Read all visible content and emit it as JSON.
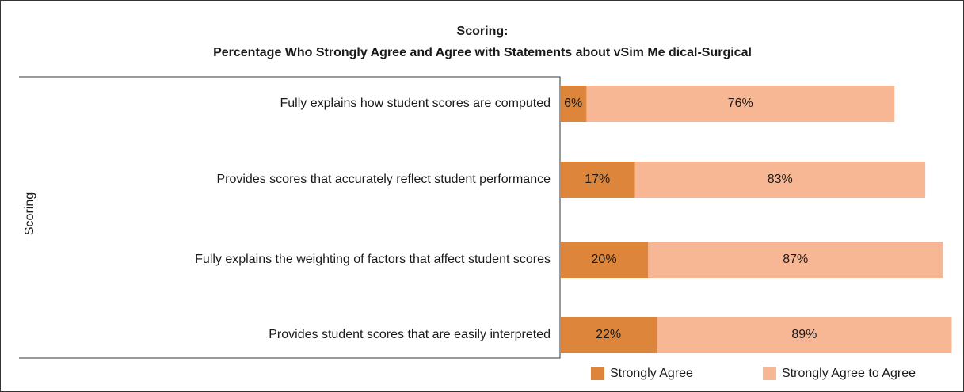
{
  "chart_data": {
    "type": "bar",
    "orientation": "horizontal",
    "title": "Scoring:",
    "subtitle": "Percentage Who Strongly Agree and Agree with Statements about vSim Me dical-Surgical",
    "y_label": "Scoring",
    "categories": [
      "Fully explains how student scores are computed",
      "Provides scores that accurately reflect student performance",
      "Fully explains the weighting of factors that affect student scores",
      "Provides student scores that are easily interpreted"
    ],
    "series": [
      {
        "name": "Strongly Agree",
        "color": "#dd853a",
        "values": [
          6,
          17,
          20,
          22
        ],
        "value_labels": [
          "6%",
          "17%",
          "20%",
          "22%"
        ]
      },
      {
        "name": "Strongly Agree to Agree",
        "color": "#f8b794",
        "values": [
          76,
          83,
          87,
          89
        ],
        "value_labels": [
          "76%",
          "83%",
          "87%",
          "89%"
        ]
      }
    ],
    "xlim": [
      0,
      90
    ],
    "legend": "bottom"
  }
}
